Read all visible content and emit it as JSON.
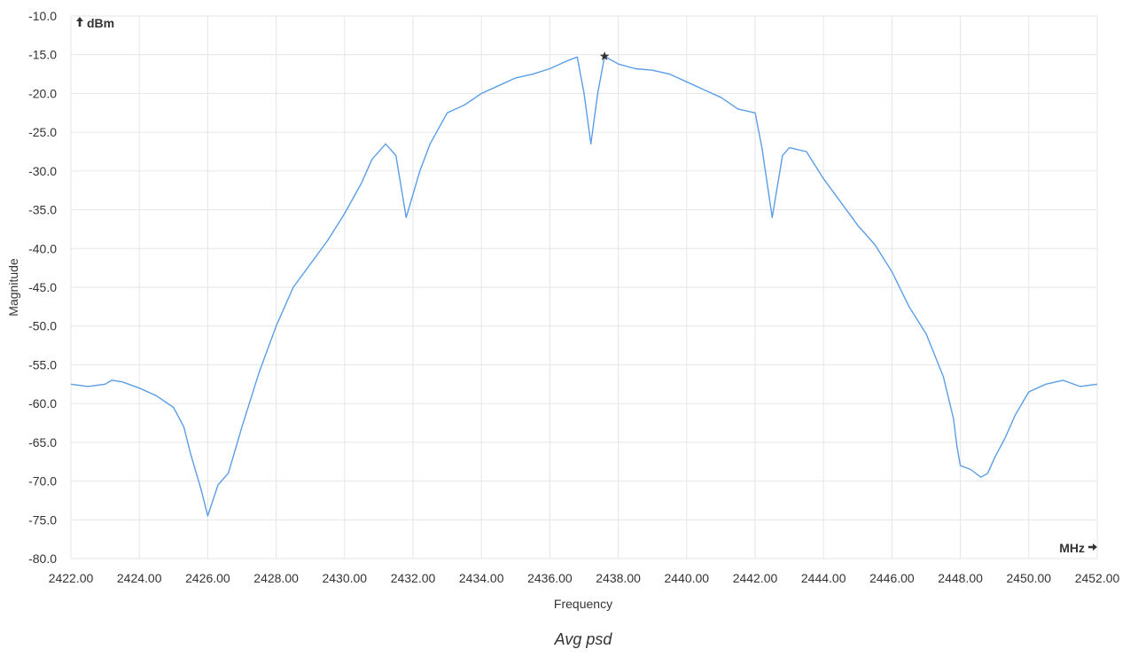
{
  "chart_data": {
    "type": "line",
    "title": "Avg psd",
    "xlabel": "Frequency",
    "ylabel": "Magnitude",
    "x_unit": "MHz",
    "y_unit": "dBm",
    "x_unit_icon": "arrow-right-icon",
    "y_unit_icon": "arrow-up-icon",
    "xlim": [
      2422,
      2452
    ],
    "ylim": [
      -80,
      -10
    ],
    "x_ticks": [
      "2422.00",
      "2424.00",
      "2426.00",
      "2428.00",
      "2430.00",
      "2432.00",
      "2434.00",
      "2436.00",
      "2438.00",
      "2440.00",
      "2442.00",
      "2444.00",
      "2446.00",
      "2448.00",
      "2450.00",
      "2452.00"
    ],
    "y_ticks": [
      "-10.0",
      "-15.0",
      "-20.0",
      "-25.0",
      "-30.0",
      "-35.0",
      "-40.0",
      "-45.0",
      "-50.0",
      "-55.0",
      "-60.0",
      "-65.0",
      "-70.0",
      "-75.0",
      "-80.0"
    ],
    "grid": true,
    "line_color": "#5b9ee6",
    "marker": {
      "x": 2437.6,
      "y": -15.2,
      "symbol": "star"
    },
    "series": [
      {
        "x": [
          2422.0,
          2422.5,
          2423.0,
          2423.2,
          2423.5,
          2424.0,
          2424.5,
          2425.0,
          2425.3,
          2425.5,
          2425.8,
          2426.0,
          2426.3,
          2426.6,
          2427.0,
          2427.5,
          2428.0,
          2428.5,
          2429.0,
          2429.5,
          2430.0,
          2430.5,
          2430.8,
          2431.2,
          2431.5,
          2431.8,
          2432.2,
          2432.5,
          2433.0,
          2433.5,
          2434.0,
          2434.5,
          2435.0,
          2435.5,
          2436.0,
          2436.5,
          2436.8,
          2437.0,
          2437.2,
          2437.4,
          2437.6,
          2438.0,
          2438.5,
          2439.0,
          2439.5,
          2440.0,
          2440.5,
          2441.0,
          2441.5,
          2442.0,
          2442.2,
          2442.5,
          2442.8,
          2443.0,
          2443.5,
          2444.0,
          2444.5,
          2445.0,
          2445.5,
          2446.0,
          2446.5,
          2447.0,
          2447.5,
          2447.8,
          2447.9,
          2448.0,
          2448.3,
          2448.6,
          2448.8,
          2449.0,
          2449.3,
          2449.6,
          2450.0,
          2450.5,
          2451.0,
          2451.5,
          2452.0
        ],
        "y": [
          -57.5,
          -57.8,
          -57.5,
          -57.0,
          -57.2,
          -58.0,
          -59.0,
          -60.5,
          -63.0,
          -66.5,
          -71.0,
          -74.5,
          -70.5,
          -69.0,
          -63.0,
          -56.0,
          -50.0,
          -45.0,
          -42.0,
          -39.0,
          -35.5,
          -31.5,
          -28.5,
          -26.5,
          -28.0,
          -36.0,
          -30.0,
          -26.5,
          -22.5,
          -21.5,
          -20.0,
          -19.0,
          -18.0,
          -17.5,
          -16.8,
          -15.8,
          -15.3,
          -20.0,
          -26.5,
          -20.0,
          -15.2,
          -16.2,
          -16.8,
          -17.0,
          -17.5,
          -18.5,
          -19.5,
          -20.5,
          -22.0,
          -22.5,
          -27.0,
          -36.0,
          -28.0,
          -27.0,
          -27.5,
          -31.0,
          -34.0,
          -37.0,
          -39.5,
          -43.0,
          -47.5,
          -51.0,
          -56.5,
          -62.0,
          -65.5,
          -68.0,
          -68.5,
          -69.5,
          -69.0,
          -67.0,
          -64.5,
          -61.5,
          -58.5,
          -57.5,
          -57.0,
          -57.8,
          -57.5
        ]
      }
    ]
  }
}
